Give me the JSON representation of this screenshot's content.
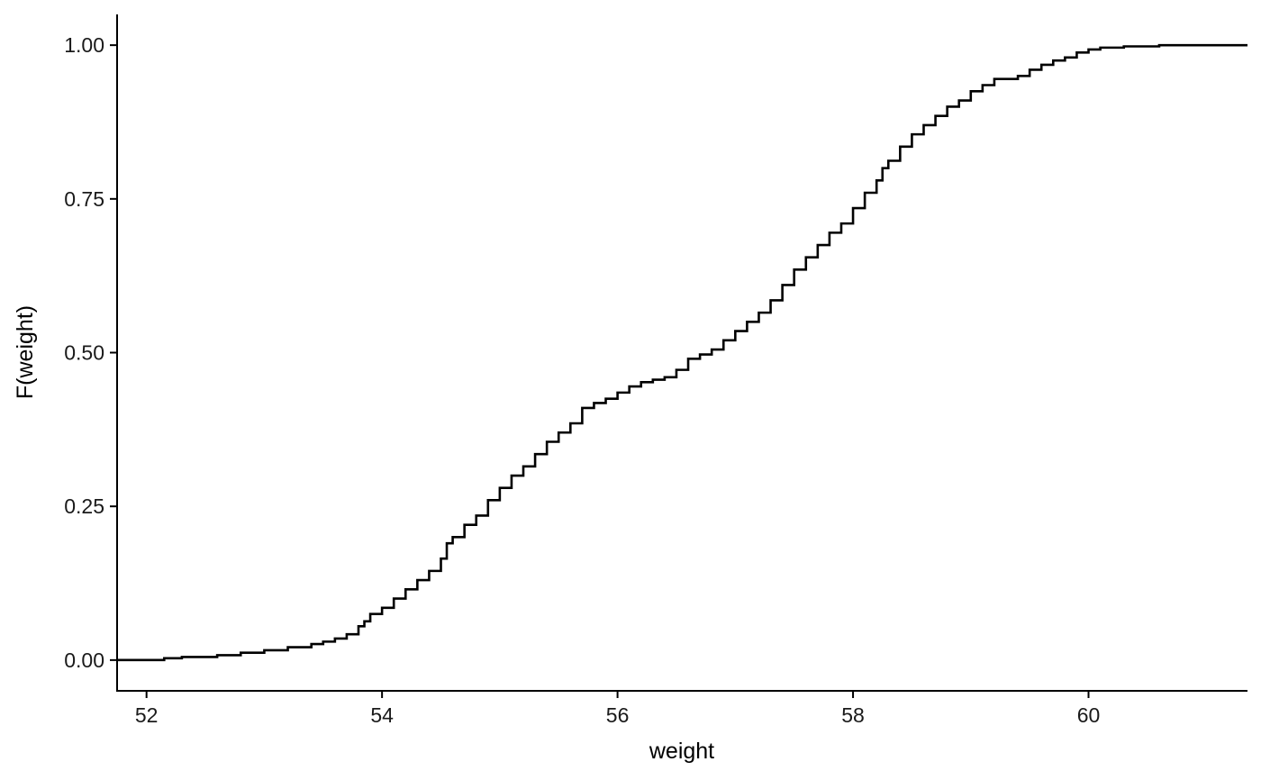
{
  "chart_data": {
    "type": "line",
    "title": "",
    "xlabel": "weight",
    "ylabel": "F(weight)",
    "xlim": [
      51.75,
      61.35
    ],
    "ylim": [
      -0.05,
      1.05
    ],
    "x_ticks": [
      52,
      54,
      56,
      58,
      60
    ],
    "x_tick_labels": [
      "52",
      "54",
      "56",
      "58",
      "60"
    ],
    "y_ticks": [
      0,
      0.25,
      0.5,
      0.75,
      1
    ],
    "y_tick_labels": [
      "0.00",
      "0.25",
      "0.50",
      "0.75",
      "1.00"
    ],
    "grid": false,
    "legend": "none",
    "line_color": "#000000",
    "series": [
      {
        "step": true,
        "x": [
          51.75,
          52.15,
          52.3,
          52.6,
          52.8,
          53.0,
          53.2,
          53.4,
          53.5,
          53.6,
          53.7,
          53.8,
          53.85,
          53.9,
          54.0,
          54.1,
          54.2,
          54.3,
          54.4,
          54.5,
          54.55,
          54.6,
          54.7,
          54.8,
          54.9,
          55.0,
          55.1,
          55.2,
          55.3,
          55.4,
          55.5,
          55.6,
          55.7,
          55.8,
          55.9,
          56.0,
          56.1,
          56.2,
          56.3,
          56.4,
          56.5,
          56.6,
          56.7,
          56.8,
          56.9,
          57.0,
          57.1,
          57.2,
          57.3,
          57.4,
          57.5,
          57.6,
          57.7,
          57.8,
          57.9,
          58.0,
          58.1,
          58.2,
          58.25,
          58.3,
          58.4,
          58.5,
          58.6,
          58.7,
          58.8,
          58.9,
          59.0,
          59.1,
          59.2,
          59.4,
          59.5,
          59.6,
          59.7,
          59.8,
          59.9,
          60.0,
          60.1,
          60.3,
          60.6,
          61.35
        ],
        "y": [
          0.0,
          0.003,
          0.005,
          0.008,
          0.012,
          0.016,
          0.021,
          0.026,
          0.03,
          0.035,
          0.042,
          0.055,
          0.063,
          0.075,
          0.085,
          0.1,
          0.115,
          0.13,
          0.145,
          0.165,
          0.19,
          0.2,
          0.22,
          0.235,
          0.26,
          0.28,
          0.3,
          0.315,
          0.335,
          0.355,
          0.37,
          0.385,
          0.41,
          0.418,
          0.425,
          0.435,
          0.445,
          0.452,
          0.456,
          0.46,
          0.472,
          0.49,
          0.497,
          0.505,
          0.52,
          0.535,
          0.55,
          0.565,
          0.585,
          0.61,
          0.635,
          0.655,
          0.675,
          0.695,
          0.71,
          0.735,
          0.76,
          0.78,
          0.8,
          0.812,
          0.835,
          0.855,
          0.87,
          0.885,
          0.9,
          0.91,
          0.925,
          0.935,
          0.945,
          0.95,
          0.96,
          0.968,
          0.975,
          0.98,
          0.988,
          0.993,
          0.996,
          0.998,
          1.0,
          1.0
        ]
      }
    ]
  }
}
